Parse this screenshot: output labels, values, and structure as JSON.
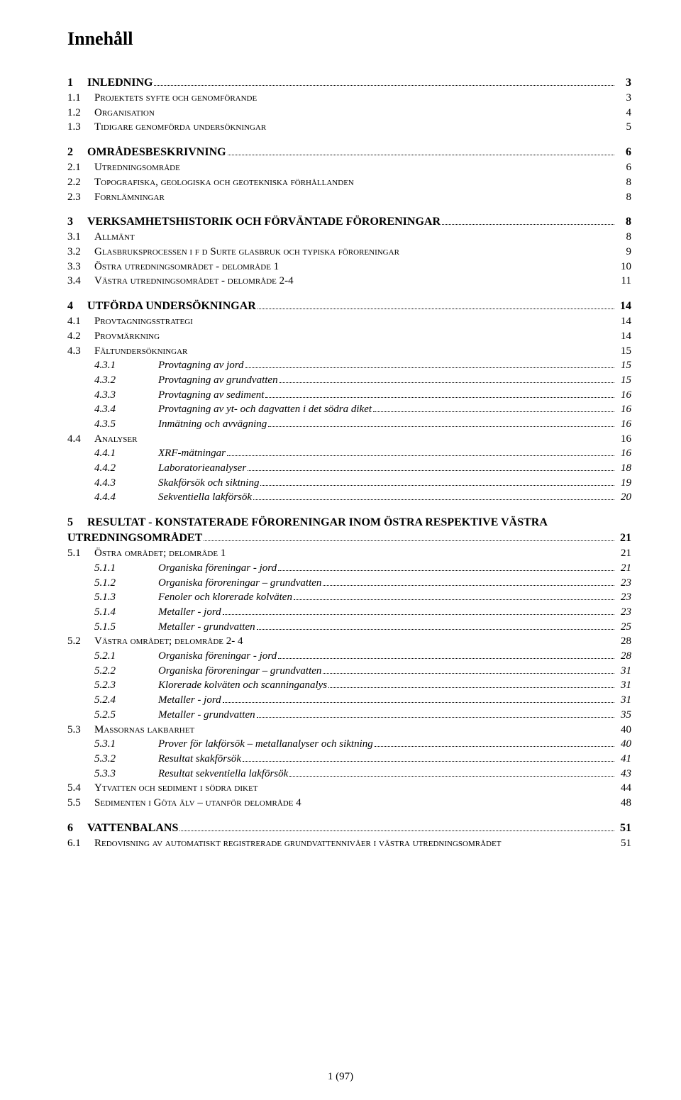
{
  "title": "Innehåll",
  "footer": "1 (97)",
  "colors": {
    "text": "#000000",
    "background": "#ffffff",
    "leader": "#000000"
  },
  "typography": {
    "font_family": "Times New Roman",
    "title_size_pt": 20,
    "lvl1_size_pt": 12,
    "lvl2_size_pt": 11,
    "lvl3_size_pt": 11
  },
  "toc": [
    {
      "level": 1,
      "num": "1",
      "text": "INLEDNING",
      "page": "3"
    },
    {
      "level": 2,
      "num": "1.1",
      "text": "Projektets syfte och genomförande",
      "page": "3",
      "no_leader": true
    },
    {
      "level": 2,
      "num": "1.2",
      "text": "Organisation",
      "page": "4",
      "no_leader": true
    },
    {
      "level": 2,
      "num": "1.3",
      "text": "Tidigare genomförda undersökningar",
      "page": "5",
      "no_leader": true
    },
    {
      "level": 1,
      "num": "2",
      "text": "OMRÅDESBESKRIVNING",
      "page": "6"
    },
    {
      "level": 2,
      "num": "2.1",
      "text": "Utredningsområde",
      "page": "6",
      "no_leader": true
    },
    {
      "level": 2,
      "num": "2.2",
      "text": "Topografiska, geologiska och geotekniska förhållanden",
      "page": "8",
      "no_leader": true
    },
    {
      "level": 2,
      "num": "2.3",
      "text": "Fornlämningar",
      "page": "8",
      "no_leader": true
    },
    {
      "level": 1,
      "num": "3",
      "text": "VERKSAMHETSHISTORIK OCH FÖRVÄNTADE FÖRORENINGAR",
      "page": "8"
    },
    {
      "level": 2,
      "num": "3.1",
      "text": "Allmänt",
      "page": "8",
      "no_leader": true
    },
    {
      "level": 2,
      "num": "3.2",
      "text": "Glasbruksprocessen i f d Surte glasbruk och typiska föroreningar",
      "page": "9",
      "no_leader": true
    },
    {
      "level": 2,
      "num": "3.3",
      "text": "Östra utredningsområdet - delområde 1",
      "page": "10",
      "no_leader": true
    },
    {
      "level": 2,
      "num": "3.4",
      "text": "Västra utredningsområdet - delområde 2-4",
      "page": "11",
      "no_leader": true
    },
    {
      "level": 1,
      "num": "4",
      "text": "UTFÖRDA UNDERSÖKNINGAR",
      "page": "14"
    },
    {
      "level": 2,
      "num": "4.1",
      "text": "Provtagningsstrategi",
      "page": "14",
      "no_leader": true
    },
    {
      "level": 2,
      "num": "4.2",
      "text": "Provmärkning",
      "page": "14",
      "no_leader": true
    },
    {
      "level": 2,
      "num": "4.3",
      "text": "Fältundersökningar",
      "page": "15",
      "no_leader": true
    },
    {
      "level": 3,
      "num": "4.3.1",
      "text": "Provtagning av jord",
      "page": "15"
    },
    {
      "level": 3,
      "num": "4.3.2",
      "text": "Provtagning av grundvatten",
      "page": "15"
    },
    {
      "level": 3,
      "num": "4.3.3",
      "text": "Provtagning av sediment",
      "page": "16"
    },
    {
      "level": 3,
      "num": "4.3.4",
      "text": "Provtagning av yt- och dagvatten i det södra diket",
      "page": "16"
    },
    {
      "level": 3,
      "num": "4.3.5",
      "text": "Inmätning och avvägning",
      "page": "16"
    },
    {
      "level": 2,
      "num": "4.4",
      "text": "Analyser",
      "page": "16",
      "no_leader": true
    },
    {
      "level": 3,
      "num": "4.4.1",
      "text": "XRF-mätningar",
      "page": "16"
    },
    {
      "level": 3,
      "num": "4.4.2",
      "text": "Laboratorieanalyser",
      "page": "18"
    },
    {
      "level": 3,
      "num": "4.4.3",
      "text": "Skakförsök och siktning",
      "page": "19"
    },
    {
      "level": 3,
      "num": "4.4.4",
      "text": "Sekventiella lakförsök",
      "page": "20"
    },
    {
      "level": 1,
      "num": "5",
      "text": "RESULTAT - KONSTATERADE FÖRORENINGAR INOM ÖSTRA RESPEKTIVE VÄSTRA UTREDNINGSOMRÅDET",
      "page": "21",
      "wrap": true
    },
    {
      "level": 2,
      "num": "5.1",
      "text": "Östra området; delområde 1",
      "page": "21",
      "no_leader": true
    },
    {
      "level": 3,
      "num": "5.1.1",
      "text": "Organiska föreningar - jord",
      "page": "21"
    },
    {
      "level": 3,
      "num": "5.1.2",
      "text": "Organiska föroreningar – grundvatten",
      "page": "23"
    },
    {
      "level": 3,
      "num": "5.1.3",
      "text": "Fenoler och klorerade kolväten",
      "page": "23"
    },
    {
      "level": 3,
      "num": "5.1.4",
      "text": "Metaller - jord",
      "page": "23"
    },
    {
      "level": 3,
      "num": "5.1.5",
      "text": "Metaller - grundvatten",
      "page": "25"
    },
    {
      "level": 2,
      "num": "5.2",
      "text": "Västra området; delområde 2- 4",
      "page": "28",
      "no_leader": true
    },
    {
      "level": 3,
      "num": "5.2.1",
      "text": "Organiska föreningar - jord",
      "page": "28"
    },
    {
      "level": 3,
      "num": "5.2.2",
      "text": "Organiska föroreningar – grundvatten",
      "page": "31"
    },
    {
      "level": 3,
      "num": "5.2.3",
      "text": "Klorerade kolväten och scanninganalys",
      "page": "31"
    },
    {
      "level": 3,
      "num": "5.2.4",
      "text": "Metaller - jord",
      "page": "31"
    },
    {
      "level": 3,
      "num": "5.2.5",
      "text": "Metaller - grundvatten",
      "page": "35"
    },
    {
      "level": 2,
      "num": "5.3",
      "text": "Massornas lakbarhet",
      "page": "40",
      "no_leader": true
    },
    {
      "level": 3,
      "num": "5.3.1",
      "text": "Prover för lakförsök – metallanalyser och siktning",
      "page": "40"
    },
    {
      "level": 3,
      "num": "5.3.2",
      "text": "Resultat skakförsök",
      "page": "41"
    },
    {
      "level": 3,
      "num": "5.3.3",
      "text": "Resultat sekventiella lakförsök",
      "page": "43"
    },
    {
      "level": 2,
      "num": "5.4",
      "text": "Ytvatten och sediment i södra diket",
      "page": "44",
      "no_leader": true
    },
    {
      "level": 2,
      "num": "5.5",
      "text": "Sedimenten i Göta älv – utanför delområde 4",
      "page": "48",
      "no_leader": true
    },
    {
      "level": 1,
      "num": "6",
      "text": "VATTENBALANS",
      "page": "51"
    },
    {
      "level": 2,
      "num": "6.1",
      "text": "Redovisning av automatiskt registrerade grundvattennivåer i västra utredningsområdet",
      "page": "51",
      "no_leader": true
    }
  ]
}
